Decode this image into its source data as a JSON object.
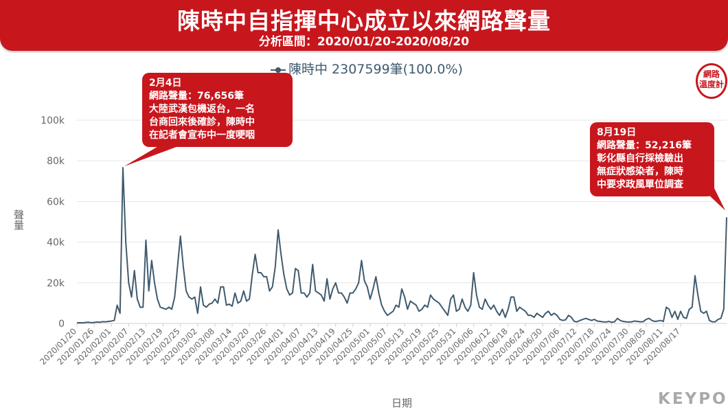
{
  "header": {
    "title": "陳時中自指揮中心成立以來網路聲量",
    "subtitle": "分析區間：2020/01/20-2020/08/20"
  },
  "legend": {
    "label": "陳時中 2307599筆(100.0%)"
  },
  "logo": {
    "line1": "網路",
    "line2": "溫度計"
  },
  "brand": {
    "text": "KEYPO"
  },
  "colors": {
    "banner": "#c8161d",
    "line": "#3f5a6d",
    "grid": "#e6e6e6",
    "axis_text": "#666666"
  },
  "annotations": [
    {
      "date": "2月4日",
      "volume": "網路聲量：76,656筆",
      "lines": [
        "大陸武漢包機返台，一名",
        "台商回來後確診，陳時中",
        "在記者會宣布中一度哽咽"
      ]
    },
    {
      "date": "8月19日",
      "volume": "網路聲量：52,216筆",
      "lines": [
        "彰化縣自行採檢驗出",
        "無症狀感染者，陳時",
        "中要求政風單位調查"
      ]
    }
  ],
  "chart_data": {
    "type": "line",
    "title": "陳時中自指揮中心成立以來網路聲量",
    "xlabel": "日期",
    "ylabel": "聲量",
    "ylim": [
      0,
      100000
    ],
    "yticks": [
      0,
      20000,
      40000,
      60000,
      80000,
      100000
    ],
    "ytick_labels": [
      "0",
      "20k",
      "40k",
      "60k",
      "80k",
      "100k"
    ],
    "grid": true,
    "legend_position": "top-center",
    "xtick_labels": [
      "2020/01/20",
      "2020/01/26",
      "2020/02/01",
      "2020/02/07",
      "2020/02/13",
      "2020/02/19",
      "2020/02/25",
      "2020/03/02",
      "2020/03/08",
      "2020/03/14",
      "2020/03/20",
      "2020/03/26",
      "2020/04/01",
      "2020/04/07",
      "2020/04/13",
      "2020/04/19",
      "2020/04/25",
      "2020/05/01",
      "2020/05/07",
      "2020/05/13",
      "2020/05/19",
      "2020/05/25",
      "2020/05/31",
      "2020/06/06",
      "2020/06/12",
      "2020/06/18",
      "2020/06/24",
      "2020/06/30",
      "2020/07/06",
      "2020/07/12",
      "2020/07/18",
      "2020/07/24",
      "2020/07/30",
      "2020/08/05",
      "2020/08/11",
      "2020/08/17"
    ],
    "series": [
      {
        "name": "陳時中",
        "x_start": "2020/01/20",
        "x_end": "2020/08/20",
        "values": [
          300,
          400,
          300,
          500,
          600,
          400,
          500,
          700,
          600,
          900,
          800,
          1000,
          1200,
          1500,
          9000,
          5000,
          76656,
          40000,
          20000,
          13000,
          26000,
          12000,
          8000,
          8000,
          41000,
          16000,
          31000,
          20000,
          12000,
          8000,
          7500,
          7000,
          8000,
          7000,
          13000,
          28000,
          43000,
          28000,
          16000,
          13000,
          12000,
          13000,
          5000,
          18000,
          9000,
          8000,
          9500,
          10000,
          12000,
          10000,
          18000,
          18000,
          9000,
          9500,
          8500,
          15000,
          10000,
          11000,
          16000,
          11000,
          12000,
          24000,
          34000,
          25000,
          25000,
          23000,
          23000,
          16000,
          18000,
          28000,
          46000,
          34000,
          24000,
          17000,
          14000,
          15000,
          27000,
          26000,
          15000,
          15000,
          13000,
          15000,
          29000,
          16000,
          15000,
          14000,
          11000,
          22000,
          12000,
          17000,
          20000,
          15000,
          15000,
          13000,
          10000,
          15000,
          15000,
          17000,
          20000,
          31000,
          21000,
          18000,
          12000,
          17000,
          23000,
          15000,
          9000,
          6000,
          4000,
          5000,
          6000,
          9000,
          8000,
          17000,
          13000,
          7000,
          11000,
          10000,
          9000,
          6000,
          7000,
          9000,
          8000,
          14000,
          12000,
          11000,
          10000,
          8000,
          6000,
          4000,
          12000,
          14000,
          6000,
          7000,
          12000,
          8000,
          6000,
          9000,
          25000,
          14000,
          8000,
          7000,
          12000,
          9000,
          7000,
          9000,
          6000,
          4000,
          7000,
          3000,
          7000,
          13000,
          13000,
          6000,
          8000,
          7000,
          6000,
          4000,
          4000,
          3000,
          5000,
          4000,
          3000,
          5000,
          6000,
          4000,
          5000,
          4000,
          2000,
          1500,
          1800,
          4000,
          3000,
          1000,
          800,
          1500,
          2000,
          2500,
          2000,
          1500,
          2000,
          1200,
          1000,
          800,
          700,
          1000,
          600,
          800,
          2500,
          1500,
          1000,
          800,
          700,
          800,
          1200,
          1000,
          800,
          900,
          2000,
          2500,
          1500,
          1000,
          1200,
          1500,
          1000,
          8000,
          7000,
          3000,
          6000,
          2000,
          6000,
          3000,
          2500,
          7000,
          8000,
          23500,
          14000,
          6000,
          5000,
          6000,
          1500,
          800,
          800,
          2000,
          2500,
          7000,
          52216
        ]
      }
    ]
  }
}
